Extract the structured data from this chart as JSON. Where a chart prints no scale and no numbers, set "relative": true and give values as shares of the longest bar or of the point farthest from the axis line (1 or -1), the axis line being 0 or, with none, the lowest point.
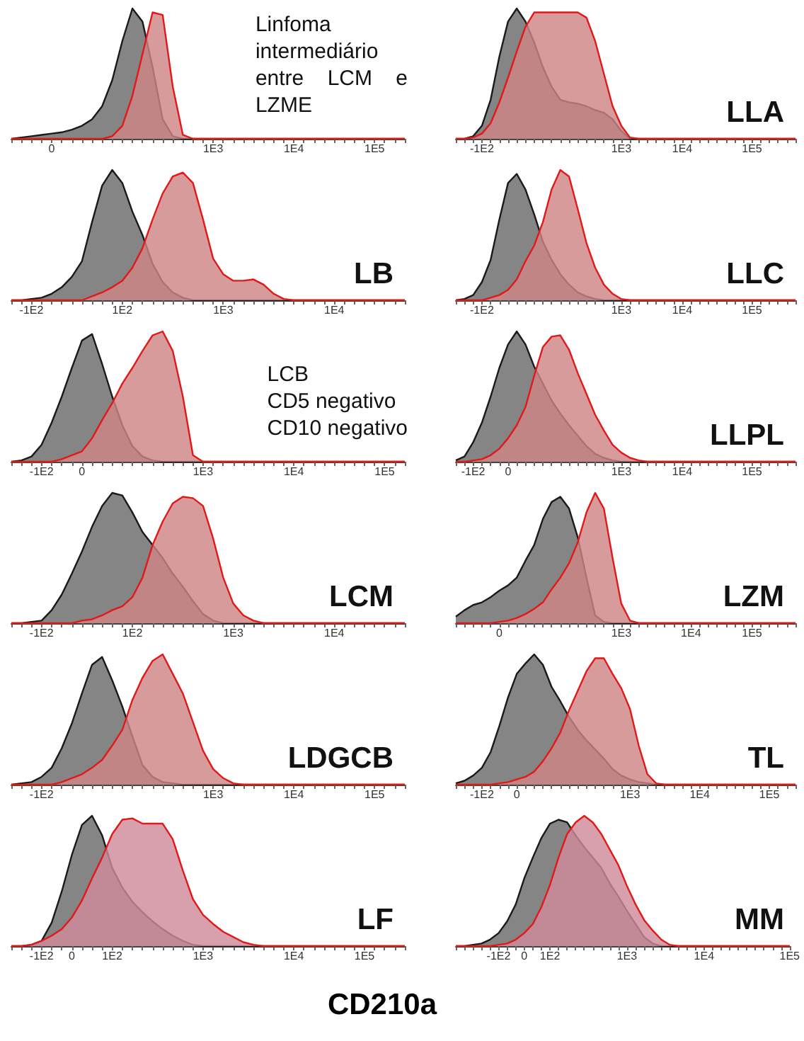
{
  "chart_data": [
    {
      "type": "area",
      "relative": true,
      "tick_labels": "x",
      "annotations": [
        "Linfoma\nintermediário\nentre    LCM    e\nLZME"
      ],
      "categories": [
        null,
        null,
        null,
        null,
        "0",
        null,
        null,
        null,
        null,
        null,
        null,
        null,
        null,
        null,
        null,
        null,
        null,
        null,
        null,
        null,
        "1E3",
        null,
        null,
        null,
        null,
        null,
        null,
        null,
        "1E4",
        null,
        null,
        null,
        null,
        null,
        null,
        null,
        "1E5",
        null,
        null,
        null
      ],
      "series": [
        {
          "color": "#858585",
          "values": [
            0,
            0.01,
            0.02,
            0.03,
            0.04,
            0.05,
            0.07,
            0.1,
            0.15,
            0.25,
            0.45,
            0.75,
            1,
            0.9,
            0.55,
            0.15,
            0.02,
            0,
            0,
            0,
            0,
            0,
            0,
            0,
            0,
            0,
            0,
            0,
            0,
            0,
            0,
            0,
            0,
            0,
            0,
            0,
            0,
            0,
            0,
            0
          ]
        },
        {
          "color": "#d08585",
          "values": [
            0,
            0,
            0,
            0,
            0,
            0,
            0,
            0,
            0,
            0,
            0.02,
            0.1,
            0.33,
            0.65,
            0.97,
            0.95,
            0.4,
            0.03,
            0,
            0,
            0,
            0,
            0,
            0,
            0,
            0,
            0,
            0,
            0,
            0,
            0,
            0,
            0,
            0,
            0,
            0,
            0,
            0,
            0,
            0
          ]
        }
      ]
    },
    {
      "type": "area",
      "relative": true,
      "tick_labels": "x",
      "annotations": [
        "LB"
      ],
      "categories": [
        null,
        null,
        "-1E2",
        null,
        null,
        null,
        null,
        null,
        null,
        null,
        null,
        "1E2",
        null,
        null,
        null,
        null,
        null,
        null,
        null,
        null,
        null,
        "1E3",
        null,
        null,
        null,
        null,
        null,
        null,
        null,
        null,
        null,
        null,
        "1E4",
        null,
        null,
        null,
        null,
        null,
        null,
        null
      ],
      "series": [
        {
          "color": "#858585",
          "values": [
            0,
            0,
            0.01,
            0.02,
            0.05,
            0.1,
            0.18,
            0.3,
            0.6,
            0.88,
            1,
            0.9,
            0.68,
            0.5,
            0.28,
            0.14,
            0.06,
            0.02,
            0,
            0,
            0,
            0,
            0,
            0,
            0,
            0,
            0,
            0,
            0,
            0,
            0,
            0,
            0,
            0,
            0,
            0,
            0,
            0,
            0,
            0
          ]
        },
        {
          "color": "#d08585",
          "values": [
            0,
            0,
            0,
            0,
            0,
            0,
            0,
            0,
            0.03,
            0.06,
            0.1,
            0.15,
            0.25,
            0.4,
            0.62,
            0.82,
            0.95,
            0.98,
            0.9,
            0.62,
            0.32,
            0.2,
            0.15,
            0.15,
            0.16,
            0.12,
            0.05,
            0.01,
            0,
            0,
            0,
            0,
            0,
            0,
            0,
            0,
            0,
            0,
            0,
            0
          ]
        }
      ]
    },
    {
      "type": "area",
      "relative": true,
      "tick_labels": "x",
      "annotations": [
        "LCB\nCD5 negativo\nCD10 negativo"
      ],
      "categories": [
        null,
        null,
        null,
        "-1E2",
        null,
        null,
        null,
        "0",
        null,
        null,
        null,
        null,
        null,
        null,
        null,
        null,
        null,
        null,
        null,
        "1E3",
        null,
        null,
        null,
        null,
        null,
        null,
        null,
        null,
        "1E4",
        null,
        null,
        null,
        null,
        null,
        null,
        null,
        null,
        "1E5",
        null,
        null
      ],
      "series": [
        {
          "color": "#858585",
          "values": [
            0,
            0.01,
            0.04,
            0.13,
            0.3,
            0.5,
            0.72,
            0.93,
            0.98,
            0.75,
            0.5,
            0.28,
            0.12,
            0.04,
            0.01,
            0,
            0,
            0,
            0,
            0,
            0,
            0,
            0,
            0,
            0,
            0,
            0,
            0,
            0,
            0,
            0,
            0,
            0,
            0,
            0,
            0,
            0,
            0,
            0,
            0
          ]
        },
        {
          "color": "#d08585",
          "values": [
            0,
            0,
            0,
            0,
            0,
            0.02,
            0.05,
            0.08,
            0.18,
            0.32,
            0.45,
            0.6,
            0.72,
            0.85,
            0.97,
            1,
            0.85,
            0.5,
            0.05,
            0,
            0,
            0,
            0,
            0,
            0,
            0,
            0,
            0,
            0,
            0,
            0,
            0,
            0,
            0,
            0,
            0,
            0,
            0,
            0,
            0
          ]
        }
      ]
    },
    {
      "type": "area",
      "relative": true,
      "tick_labels": "x",
      "annotations": [
        "LCM"
      ],
      "categories": [
        null,
        null,
        null,
        "-1E2",
        null,
        null,
        null,
        null,
        null,
        null,
        null,
        null,
        "1E2",
        null,
        null,
        null,
        null,
        null,
        null,
        null,
        null,
        null,
        "1E3",
        null,
        null,
        null,
        null,
        null,
        null,
        null,
        null,
        null,
        "1E4",
        null,
        null,
        null,
        null,
        null,
        null,
        null
      ],
      "series": [
        {
          "color": "#858585",
          "values": [
            0,
            0,
            0.01,
            0.02,
            0.1,
            0.22,
            0.38,
            0.55,
            0.74,
            0.9,
            1,
            0.98,
            0.85,
            0.7,
            0.6,
            0.5,
            0.38,
            0.28,
            0.17,
            0.07,
            0.02,
            0,
            0,
            0,
            0,
            0,
            0,
            0,
            0,
            0,
            0,
            0,
            0,
            0,
            0,
            0,
            0,
            0,
            0,
            0
          ]
        },
        {
          "color": "#d08585",
          "values": [
            0,
            0,
            0,
            0,
            0,
            0,
            0,
            0.02,
            0.03,
            0.06,
            0.1,
            0.13,
            0.2,
            0.35,
            0.6,
            0.78,
            0.92,
            0.97,
            0.96,
            0.9,
            0.65,
            0.35,
            0.15,
            0.06,
            0.02,
            0,
            0,
            0,
            0,
            0,
            0,
            0,
            0,
            0,
            0,
            0,
            0,
            0,
            0,
            0
          ]
        }
      ]
    },
    {
      "type": "area",
      "relative": true,
      "tick_labels": "x",
      "annotations": [
        "LDGCB"
      ],
      "categories": [
        null,
        null,
        null,
        "-1E2",
        null,
        null,
        null,
        null,
        null,
        null,
        null,
        null,
        null,
        null,
        null,
        null,
        null,
        null,
        null,
        null,
        "1E3",
        null,
        null,
        null,
        null,
        null,
        null,
        null,
        "1E4",
        null,
        null,
        null,
        null,
        null,
        null,
        null,
        "1E5",
        null,
        null,
        null
      ],
      "series": [
        {
          "color": "#858585",
          "values": [
            0,
            0.01,
            0.02,
            0.06,
            0.13,
            0.28,
            0.47,
            0.7,
            0.92,
            0.98,
            0.8,
            0.6,
            0.37,
            0.15,
            0.06,
            0.02,
            0.01,
            0,
            0,
            0,
            0,
            0,
            0,
            0,
            0,
            0,
            0,
            0,
            0,
            0,
            0,
            0,
            0,
            0,
            0,
            0,
            0,
            0,
            0,
            0
          ]
        },
        {
          "color": "#d08585",
          "values": [
            0,
            0,
            0,
            0,
            0,
            0.02,
            0.05,
            0.08,
            0.13,
            0.19,
            0.3,
            0.42,
            0.65,
            0.82,
            0.95,
            1,
            0.85,
            0.7,
            0.48,
            0.26,
            0.12,
            0.05,
            0.01,
            0,
            0,
            0,
            0,
            0,
            0,
            0,
            0,
            0,
            0,
            0,
            0,
            0,
            0,
            0,
            0,
            0
          ]
        }
      ]
    },
    {
      "type": "area",
      "relative": true,
      "tick_labels": "x",
      "annotations": [
        "LF"
      ],
      "categories": [
        null,
        null,
        null,
        "-1E2",
        null,
        null,
        "0",
        null,
        null,
        null,
        "1E2",
        null,
        null,
        null,
        null,
        null,
        null,
        null,
        null,
        "1E3",
        null,
        null,
        null,
        null,
        null,
        null,
        null,
        null,
        "1E4",
        null,
        null,
        null,
        null,
        null,
        null,
        "1E5",
        null,
        null,
        null,
        null
      ],
      "series": [
        {
          "color": "#858585",
          "values": [
            0,
            0,
            0.01,
            0.04,
            0.18,
            0.42,
            0.7,
            0.93,
            1,
            0.85,
            0.6,
            0.45,
            0.34,
            0.26,
            0.19,
            0.13,
            0.08,
            0.04,
            0.01,
            0,
            0,
            0,
            0,
            0,
            0,
            0,
            0,
            0,
            0,
            0,
            0,
            0,
            0,
            0,
            0,
            0,
            0,
            0,
            0,
            0
          ]
        },
        {
          "color": "#cf8a9a",
          "values": [
            0,
            0,
            0.01,
            0.04,
            0.08,
            0.13,
            0.22,
            0.35,
            0.52,
            0.68,
            0.86,
            0.97,
            0.98,
            0.94,
            0.94,
            0.94,
            0.82,
            0.58,
            0.36,
            0.24,
            0.17,
            0.11,
            0.07,
            0.03,
            0.01,
            0,
            0,
            0,
            0,
            0,
            0,
            0,
            0,
            0,
            0,
            0,
            0,
            0,
            0,
            0
          ]
        }
      ]
    },
    {
      "type": "area",
      "relative": true,
      "tick_labels": "x",
      "annotations": [
        "LLA"
      ],
      "categories": [
        null,
        null,
        null,
        "-1E2",
        null,
        null,
        null,
        null,
        null,
        null,
        null,
        null,
        null,
        null,
        null,
        null,
        null,
        null,
        null,
        "1E3",
        null,
        null,
        null,
        null,
        null,
        null,
        "1E4",
        null,
        null,
        null,
        null,
        null,
        null,
        null,
        "1E5",
        null,
        null,
        null,
        null,
        null
      ],
      "series": [
        {
          "color": "#858585",
          "values": [
            0,
            0,
            0.02,
            0.1,
            0.3,
            0.63,
            0.9,
            1,
            0.9,
            0.74,
            0.55,
            0.4,
            0.3,
            0.28,
            0.27,
            0.25,
            0.22,
            0.2,
            0.15,
            0.06,
            0,
            0,
            0,
            0,
            0,
            0,
            0,
            0,
            0,
            0,
            0,
            0,
            0,
            0,
            0,
            0,
            0,
            0,
            0,
            0
          ]
        },
        {
          "color": "#d08585",
          "values": [
            0,
            0,
            0.01,
            0.04,
            0.12,
            0.28,
            0.47,
            0.67,
            0.86,
            0.97,
            0.97,
            0.97,
            0.97,
            0.97,
            0.97,
            0.93,
            0.75,
            0.5,
            0.25,
            0.1,
            0.01,
            0,
            0,
            0,
            0,
            0,
            0,
            0,
            0,
            0,
            0,
            0,
            0,
            0,
            0,
            0,
            0,
            0,
            0,
            0
          ]
        }
      ]
    },
    {
      "type": "area",
      "relative": true,
      "tick_labels": "x",
      "annotations": [
        "LLC"
      ],
      "categories": [
        null,
        null,
        null,
        "-1E2",
        null,
        null,
        null,
        null,
        null,
        null,
        null,
        null,
        null,
        null,
        null,
        null,
        null,
        null,
        null,
        "1E3",
        null,
        null,
        null,
        null,
        null,
        null,
        "1E4",
        null,
        null,
        null,
        null,
        null,
        null,
        null,
        "1E5",
        null,
        null,
        null,
        null,
        null
      ],
      "series": [
        {
          "color": "#858585",
          "values": [
            0,
            0.01,
            0.04,
            0.14,
            0.31,
            0.62,
            0.9,
            0.97,
            0.85,
            0.66,
            0.45,
            0.31,
            0.2,
            0.12,
            0.06,
            0.03,
            0.01,
            0,
            0,
            0,
            0,
            0,
            0,
            0,
            0,
            0,
            0,
            0,
            0,
            0,
            0,
            0,
            0,
            0,
            0,
            0,
            0,
            0,
            0,
            0
          ]
        },
        {
          "color": "#d08585",
          "values": [
            0,
            0,
            0,
            0,
            0.02,
            0.04,
            0.08,
            0.16,
            0.3,
            0.42,
            0.6,
            0.85,
            1,
            0.95,
            0.7,
            0.44,
            0.25,
            0.12,
            0.05,
            0.01,
            0,
            0,
            0,
            0,
            0,
            0,
            0,
            0,
            0,
            0,
            0,
            0,
            0,
            0,
            0,
            0,
            0,
            0,
            0,
            0
          ]
        }
      ]
    },
    {
      "type": "area",
      "relative": true,
      "tick_labels": "x",
      "annotations": [
        "LLPL"
      ],
      "categories": [
        null,
        null,
        "-1E2",
        null,
        null,
        null,
        "0",
        null,
        null,
        null,
        null,
        null,
        null,
        null,
        null,
        null,
        null,
        null,
        null,
        "1E3",
        null,
        null,
        null,
        null,
        null,
        null,
        "1E4",
        null,
        null,
        null,
        null,
        null,
        null,
        null,
        "1E5",
        null,
        null,
        null,
        null,
        null
      ],
      "series": [
        {
          "color": "#858585",
          "values": [
            0.01,
            0.04,
            0.15,
            0.3,
            0.5,
            0.72,
            0.9,
            1,
            0.9,
            0.73,
            0.6,
            0.47,
            0.37,
            0.28,
            0.2,
            0.12,
            0.06,
            0.03,
            0.01,
            0,
            0,
            0,
            0,
            0,
            0,
            0,
            0,
            0,
            0,
            0,
            0,
            0,
            0,
            0,
            0,
            0,
            0,
            0,
            0,
            0
          ]
        },
        {
          "color": "#d08585",
          "values": [
            0,
            0,
            0.01,
            0.02,
            0.05,
            0.1,
            0.18,
            0.28,
            0.42,
            0.66,
            0.88,
            0.96,
            0.97,
            0.86,
            0.68,
            0.52,
            0.36,
            0.24,
            0.13,
            0.07,
            0.03,
            0.01,
            0,
            0,
            0,
            0,
            0,
            0,
            0,
            0,
            0,
            0,
            0,
            0,
            0,
            0,
            0,
            0,
            0,
            0
          ]
        }
      ]
    },
    {
      "type": "area",
      "relative": true,
      "tick_labels": "x",
      "annotations": [
        "LZM"
      ],
      "categories": [
        null,
        null,
        null,
        null,
        null,
        "0",
        null,
        null,
        null,
        null,
        null,
        null,
        null,
        null,
        null,
        null,
        null,
        null,
        null,
        "1E3",
        null,
        null,
        null,
        null,
        null,
        null,
        null,
        "1E4",
        null,
        null,
        null,
        null,
        null,
        null,
        "1E5",
        null,
        null,
        null,
        null,
        null
      ],
      "series": [
        {
          "color": "#858585",
          "values": [
            0.05,
            0.1,
            0.14,
            0.16,
            0.2,
            0.25,
            0.29,
            0.35,
            0.48,
            0.6,
            0.8,
            0.93,
            0.97,
            0.88,
            0.66,
            0.35,
            0.06,
            0.01,
            0,
            0,
            0,
            0,
            0,
            0,
            0,
            0,
            0,
            0,
            0,
            0,
            0,
            0,
            0,
            0,
            0,
            0,
            0,
            0,
            0,
            0
          ]
        },
        {
          "color": "#d08585",
          "values": [
            0,
            0,
            0,
            0,
            0,
            0.01,
            0.02,
            0.04,
            0.07,
            0.11,
            0.16,
            0.26,
            0.35,
            0.46,
            0.62,
            0.85,
            1,
            0.88,
            0.5,
            0.15,
            0.02,
            0,
            0,
            0,
            0,
            0,
            0,
            0,
            0,
            0,
            0,
            0,
            0,
            0,
            0,
            0,
            0,
            0,
            0,
            0
          ]
        }
      ]
    },
    {
      "type": "area",
      "relative": true,
      "tick_labels": "x",
      "annotations": [
        "TL"
      ],
      "categories": [
        null,
        null,
        null,
        "-1E2",
        null,
        null,
        null,
        "0",
        null,
        null,
        null,
        null,
        null,
        null,
        null,
        null,
        null,
        null,
        null,
        null,
        "1E3",
        null,
        null,
        null,
        null,
        null,
        null,
        null,
        "1E4",
        null,
        null,
        null,
        null,
        null,
        null,
        null,
        "1E5",
        null,
        null,
        null
      ],
      "series": [
        {
          "color": "#858585",
          "values": [
            0.01,
            0.03,
            0.07,
            0.13,
            0.25,
            0.45,
            0.67,
            0.85,
            0.93,
            1,
            0.92,
            0.75,
            0.64,
            0.52,
            0.42,
            0.34,
            0.27,
            0.2,
            0.12,
            0.07,
            0.04,
            0.02,
            0.01,
            0,
            0,
            0,
            0,
            0,
            0,
            0,
            0,
            0,
            0,
            0,
            0,
            0,
            0,
            0,
            0,
            0
          ]
        },
        {
          "color": "#d08585",
          "values": [
            0,
            0,
            0,
            0,
            0,
            0.01,
            0.02,
            0.04,
            0.06,
            0.1,
            0.18,
            0.28,
            0.4,
            0.57,
            0.72,
            0.87,
            0.97,
            0.97,
            0.85,
            0.74,
            0.58,
            0.3,
            0.08,
            0.01,
            0,
            0,
            0,
            0,
            0,
            0,
            0,
            0,
            0,
            0,
            0,
            0,
            0,
            0,
            0,
            0
          ]
        }
      ]
    },
    {
      "type": "area",
      "relative": true,
      "tick_labels": "x",
      "annotations": [
        "MM"
      ],
      "categories": [
        null,
        null,
        null,
        null,
        null,
        "-1E2",
        null,
        null,
        "0",
        null,
        null,
        "1E2",
        null,
        null,
        null,
        null,
        null,
        null,
        null,
        null,
        "1E3",
        null,
        null,
        null,
        null,
        null,
        null,
        null,
        null,
        "1E4",
        null,
        null,
        null,
        null,
        null,
        null,
        null,
        null,
        null,
        "1E5"
      ],
      "series": [
        {
          "color": "#858585",
          "values": [
            0,
            0,
            0.01,
            0.02,
            0.05,
            0.1,
            0.19,
            0.32,
            0.52,
            0.68,
            0.83,
            0.94,
            0.97,
            0.95,
            0.85,
            0.76,
            0.68,
            0.6,
            0.48,
            0.38,
            0.27,
            0.17,
            0.07,
            0.02,
            0,
            0,
            0,
            0,
            0,
            0,
            0,
            0,
            0,
            0,
            0,
            0,
            0,
            0,
            0,
            0
          ]
        },
        {
          "color": "#cf8a9a",
          "values": [
            0,
            0,
            0,
            0,
            0,
            0.01,
            0.02,
            0.05,
            0.1,
            0.17,
            0.3,
            0.47,
            0.68,
            0.86,
            0.95,
            1,
            0.95,
            0.86,
            0.74,
            0.62,
            0.46,
            0.32,
            0.2,
            0.12,
            0.05,
            0.01,
            0,
            0,
            0,
            0,
            0,
            0,
            0,
            0,
            0,
            0,
            0,
            0,
            0,
            0
          ]
        }
      ]
    },
    {
      "type": "other",
      "title": "CD210a"
    }
  ]
}
